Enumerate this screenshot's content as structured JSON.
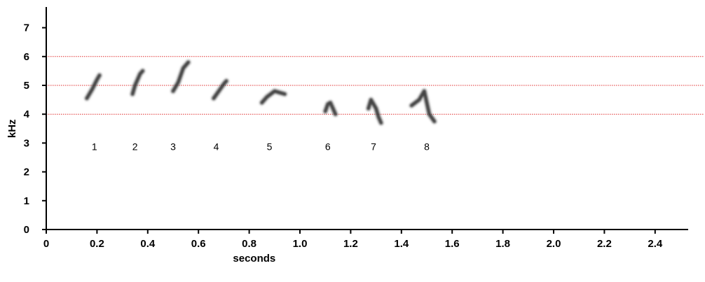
{
  "chart_data": {
    "type": "spectrogram",
    "xlabel": "seconds",
    "ylabel": "kHz",
    "xlim": [
      0,
      2.53
    ],
    "ylim": [
      0,
      7.6
    ],
    "x_ticks": [
      "0",
      "0.2",
      "0.4",
      "0.6",
      "0.8",
      "1.0",
      "1.2",
      "1.4",
      "1.6",
      "1.8",
      "2.0",
      "2.2",
      "2.4"
    ],
    "y_ticks": [
      "0",
      "1",
      "2",
      "3",
      "4",
      "5",
      "6",
      "7"
    ],
    "reference_lines_khz": [
      4,
      5,
      6
    ],
    "reference_line_color": "#e03030",
    "note_color": "#2a2a2a",
    "notes": [
      {
        "label": "1",
        "label_x": 0.19,
        "label_y": 2.75,
        "path": [
          [
            0.16,
            4.55
          ],
          [
            0.18,
            4.85
          ],
          [
            0.2,
            5.2
          ],
          [
            0.21,
            5.35
          ]
        ]
      },
      {
        "label": "2",
        "label_x": 0.35,
        "label_y": 2.75,
        "path": [
          [
            0.34,
            4.7
          ],
          [
            0.35,
            5.0
          ],
          [
            0.37,
            5.4
          ],
          [
            0.38,
            5.5
          ]
        ]
      },
      {
        "label": "3",
        "label_x": 0.5,
        "label_y": 2.75,
        "path": [
          [
            0.5,
            4.8
          ],
          [
            0.52,
            5.1
          ],
          [
            0.54,
            5.6
          ],
          [
            0.56,
            5.8
          ]
        ]
      },
      {
        "label": "4",
        "label_x": 0.67,
        "label_y": 2.75,
        "path": [
          [
            0.66,
            4.55
          ],
          [
            0.68,
            4.8
          ],
          [
            0.7,
            5.05
          ],
          [
            0.71,
            5.15
          ]
        ]
      },
      {
        "label": "5",
        "label_x": 0.88,
        "label_y": 2.75,
        "path": [
          [
            0.85,
            4.4
          ],
          [
            0.87,
            4.6
          ],
          [
            0.9,
            4.8
          ],
          [
            0.92,
            4.75
          ],
          [
            0.94,
            4.7
          ]
        ]
      },
      {
        "label": "6",
        "label_x": 1.11,
        "label_y": 2.75,
        "path": [
          [
            1.1,
            4.1
          ],
          [
            1.11,
            4.35
          ],
          [
            1.12,
            4.4
          ],
          [
            1.13,
            4.2
          ],
          [
            1.14,
            4.0
          ]
        ]
      },
      {
        "label": "7",
        "label_x": 1.29,
        "label_y": 2.75,
        "path": [
          [
            1.27,
            4.2
          ],
          [
            1.28,
            4.5
          ],
          [
            1.3,
            4.2
          ],
          [
            1.31,
            3.9
          ],
          [
            1.32,
            3.7
          ]
        ]
      },
      {
        "label": "8",
        "label_x": 1.5,
        "label_y": 2.75,
        "path": [
          [
            1.44,
            4.3
          ],
          [
            1.47,
            4.5
          ],
          [
            1.49,
            4.8
          ],
          [
            1.5,
            4.4
          ],
          [
            1.51,
            4.0
          ],
          [
            1.53,
            3.75
          ]
        ]
      }
    ]
  }
}
